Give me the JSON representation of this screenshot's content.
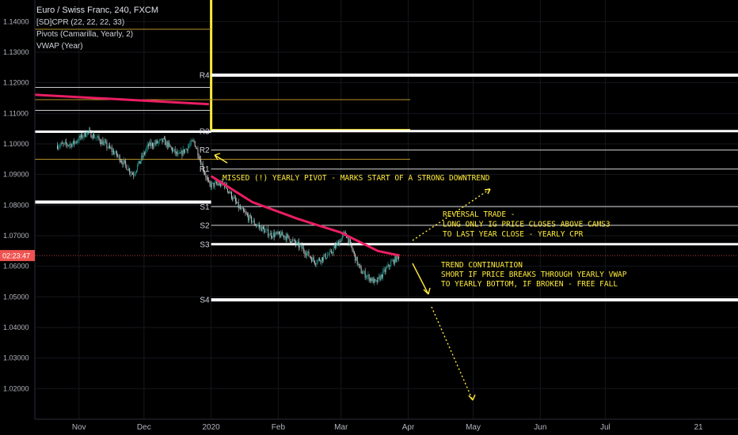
{
  "legend": {
    "title": "Euro / Swiss Franc, 240, FXCM",
    "indicators": [
      "[SD]CPR (22, 22, 22, 33)",
      "Pivots (Camarilla, Yearly, 2)",
      "VWAP (Year)"
    ]
  },
  "colors": {
    "background": "#000000",
    "candle_up": "#26a69a",
    "candle_down": "#cfcfcf",
    "vwap": "#e91e63",
    "pivot_levels": "#ffffff",
    "cpr": "#ffeb3b",
    "cpr_band": "#b8942a",
    "notes": "#ffeb3b",
    "price_tag": "#ef5350"
  },
  "price_tag": "02:23:47",
  "levels": [
    {
      "label": "R4",
      "value": 1.1225
    },
    {
      "label": "R3",
      "value": 1.1042
    },
    {
      "label": "R2",
      "value": 1.098
    },
    {
      "label": "R1",
      "value": 1.0918
    },
    {
      "label": "S1",
      "value": 1.0795
    },
    {
      "label": "S2",
      "value": 1.0734
    },
    {
      "label": "S3",
      "value": 1.0672
    },
    {
      "label": "S4",
      "value": 1.049
    }
  ],
  "notes": {
    "missed_pivot": "MISSED (!) YEARLY PIVOT - MARKS START OF A STRONG DOWNTREND",
    "reversal": [
      "REVERSAL TRADE -",
      "LONG ONLY IG PRICE CLOSES ABOVE CAMS3",
      "TO LAST YEAR CLOSE - YEARLY CPR"
    ],
    "continuation": [
      "TREND CONTINUATION",
      "SHORT IF PRICE BREAKS THROUGH YEARLY VWAP",
      "TO YEARLY BOTTOM, IF BROKEN - FREE FALL"
    ]
  },
  "chart_data": {
    "type": "line",
    "title": "Euro / Swiss Franc, 240, FXCM",
    "y_ticks": [
      1.14,
      1.13,
      1.12,
      1.11,
      1.1,
      1.09,
      1.08,
      1.07,
      1.06,
      1.05,
      1.04,
      1.03,
      1.02
    ],
    "y_tick_labels": [
      "1.14000",
      "1.13000",
      "1.12000",
      "1.11000",
      "1.10000",
      "1.09000",
      "1.08000",
      "1.07000",
      "1.06000",
      "1.05000",
      "1.04000",
      "1.03000",
      "1.02000"
    ],
    "x_tick_labels": [
      "Nov",
      "Dec",
      "2020",
      "Feb",
      "Mar",
      "Apr",
      "May",
      "Jun",
      "Jul",
      "21"
    ],
    "ylim": [
      1.0135,
      1.1465
    ],
    "series": [
      {
        "name": "",
        "kind": "price",
        "x": [
          "Oct 22",
          "Oct 29",
          "Nov 5",
          "Nov 12",
          "Nov 19",
          "Nov 26",
          "Dec 3",
          "Dec 10",
          "Dec 17",
          "Dec 24",
          "Dec 31",
          "Jan 7",
          "Jan 14",
          "Jan 21",
          "Jan 28",
          "Feb 4",
          "Feb 11",
          "Feb 18",
          "Feb 25",
          "Mar 3",
          "Mar 10",
          "Mar 17",
          "Mar 24",
          "Mar 28"
        ],
        "values": [
          1.0995,
          1.1,
          1.104,
          1.1005,
          1.096,
          1.09,
          1.0995,
          1.101,
          1.096,
          1.101,
          1.0865,
          1.087,
          1.079,
          1.074,
          1.0705,
          1.07,
          1.0665,
          1.0615,
          1.064,
          1.071,
          1.0585,
          1.0545,
          1.061,
          1.0635
        ]
      },
      {
        "name": "",
        "kind": "vwap_2019",
        "x": [
          "Oct 1",
          "Dec 31"
        ],
        "values": [
          1.1165,
          1.113
        ]
      },
      {
        "name": "",
        "kind": "vwap_2020",
        "x": [
          "Jan 1",
          "Jan 20",
          "Feb 10",
          "Mar 1",
          "Mar 18",
          "Mar 28"
        ],
        "values": [
          1.0895,
          1.081,
          1.0755,
          1.071,
          1.065,
          1.0635
        ]
      }
    ]
  }
}
